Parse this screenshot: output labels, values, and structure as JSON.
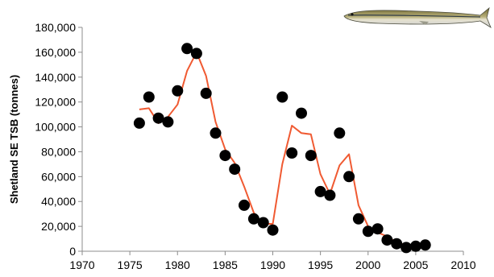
{
  "chart_data": {
    "type": "scatter",
    "title": "",
    "xlabel": "",
    "ylabel": "Shetland SE TSB (tonnes)",
    "xlim": [
      1970,
      2010
    ],
    "ylim": [
      0,
      180000
    ],
    "x_ticks": [
      1970,
      1975,
      1980,
      1985,
      1990,
      1995,
      2000,
      2005,
      2010
    ],
    "y_ticks": [
      0,
      20000,
      40000,
      60000,
      80000,
      100000,
      120000,
      140000,
      160000,
      180000
    ],
    "grid": false,
    "legend": "none",
    "series": [
      {
        "kind": "points",
        "color": "#000000",
        "x": [
          1976,
          1977,
          1978,
          1979,
          1980,
          1981,
          1982,
          1983,
          1984,
          1985,
          1986,
          1987,
          1988,
          1989,
          1990,
          1991,
          1992,
          1993,
          1994,
          1995,
          1996,
          1997,
          1998,
          1999,
          2000,
          2001,
          2002,
          2003,
          2004,
          2005,
          2006
        ],
        "values": [
          103000,
          124000,
          107000,
          104000,
          129000,
          163000,
          159000,
          127000,
          95000,
          77000,
          66000,
          37000,
          26000,
          23000,
          17000,
          124000,
          79000,
          111000,
          77000,
          48000,
          45000,
          95000,
          60000,
          26000,
          16000,
          18000,
          9000,
          6000,
          3000,
          4000,
          5000
        ]
      },
      {
        "kind": "line",
        "color": "#f05a32",
        "x": [
          1976,
          1977,
          1978,
          1979,
          1980,
          1981,
          1982,
          1983,
          1984,
          1985,
          1986,
          1987,
          1988,
          1989,
          1990,
          1991,
          1992,
          1993,
          1994,
          1995,
          1996,
          1997,
          1998,
          1999,
          2000,
          2001,
          2002,
          2003,
          2004,
          2005,
          2006
        ],
        "values": [
          114000,
          115000,
          103000,
          108000,
          118000,
          145000,
          160000,
          141000,
          104000,
          82000,
          71000,
          52000,
          31000,
          22000,
          22000,
          70000,
          101000,
          95000,
          94000,
          62000,
          46000,
          69000,
          78000,
          37000,
          20000,
          15000,
          12000,
          7000,
          5000,
          4500,
          5000
        ]
      }
    ]
  }
}
